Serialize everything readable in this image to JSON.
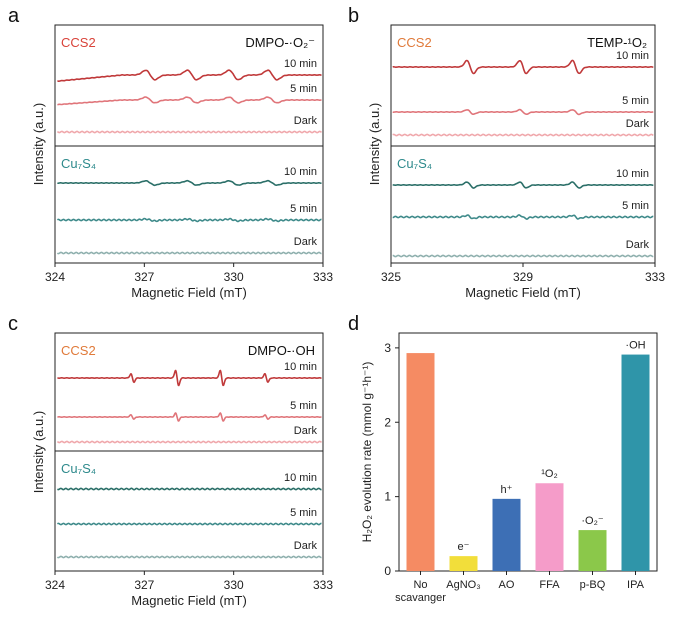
{
  "chart_data": [
    {
      "panel": "a",
      "type": "line",
      "title": "",
      "xlabel": "Magnetic Field (mT)",
      "ylabel": "Intensity (a.u.)",
      "xlim": [
        324,
        333
      ],
      "xticks": [
        324,
        327,
        330,
        333
      ],
      "probe_label": "DMPO-·O₂⁻",
      "groups": [
        {
          "name": "CCS2",
          "color": "#d9433a",
          "traces": [
            {
              "label": "10 min",
              "color": "#c0393a",
              "amplitude": 1.0,
              "baseline_rise": 0.8
            },
            {
              "label": "5 min",
              "color": "#e0757a",
              "amplitude": 0.6,
              "baseline_rise": 0.6
            },
            {
              "label": "Dark",
              "color": "#f0a8ac",
              "amplitude": 0.0,
              "baseline_rise": 0.0
            }
          ]
        },
        {
          "name": "Cu₇S₄",
          "color": "#2e8a8c",
          "traces": [
            {
              "label": "10 min",
              "color": "#2b6f68",
              "amplitude": 0.45,
              "baseline_rise": 0.0
            },
            {
              "label": "5 min",
              "color": "#3e8a8a",
              "amplitude": 0.2,
              "baseline_rise": 0.0
            },
            {
              "label": "Dark",
              "color": "#8fb0ae",
              "amplitude": 0.0,
              "baseline_rise": 0.0
            }
          ]
        }
      ],
      "peak_centers_mT": [
        327.2,
        328.6,
        330.0,
        331.3
      ]
    },
    {
      "panel": "b",
      "type": "line",
      "title": "",
      "xlabel": "Magnetic Field (mT)",
      "ylabel": "Intensity (a.u.)",
      "xlim": [
        325,
        333
      ],
      "xticks": [
        325,
        329,
        333
      ],
      "probe_label": "TEMP-¹O₂",
      "groups": [
        {
          "name": "CCS2",
          "color": "#e07a3a",
          "traces": [
            {
              "label": "10 min",
              "color": "#c0393a",
              "amplitude": 1.0,
              "baseline_rise": 0.0
            },
            {
              "label": "5 min",
              "color": "#e0757a",
              "amplitude": 0.35,
              "baseline_rise": 0.0
            },
            {
              "label": "Dark",
              "color": "#f0a8ac",
              "amplitude": 0.0,
              "baseline_rise": 0.0
            }
          ]
        },
        {
          "name": "Cu₇S₄",
          "color": "#2e8a8c",
          "traces": [
            {
              "label": "10 min",
              "color": "#2b6f68",
              "amplitude": 0.45,
              "baseline_rise": 0.0
            },
            {
              "label": "5 min",
              "color": "#3e8a8a",
              "amplitude": 0.25,
              "baseline_rise": 0.0
            },
            {
              "label": "Dark",
              "color": "#8fb0ae",
              "amplitude": 0.0,
              "baseline_rise": 0.0
            }
          ]
        }
      ],
      "peak_centers_mT": [
        327.4,
        329.0,
        330.6
      ]
    },
    {
      "panel": "c",
      "type": "line",
      "title": "",
      "xlabel": "Magnetic Field (mT)",
      "ylabel": "Intensity (a.u.)",
      "xlim": [
        324,
        333
      ],
      "xticks": [
        324,
        327,
        330,
        333
      ],
      "probe_label": "DMPO-·OH",
      "groups": [
        {
          "name": "CCS2",
          "color": "#e07a3a",
          "traces": [
            {
              "label": "10 min",
              "color": "#c0393a",
              "amplitude": 1.0,
              "baseline_rise": 0.0
            },
            {
              "label": "5 min",
              "color": "#e0757a",
              "amplitude": 0.5,
              "baseline_rise": 0.0
            },
            {
              "label": "Dark",
              "color": "#f0a8ac",
              "amplitude": 0.0,
              "baseline_rise": 0.0
            }
          ]
        },
        {
          "name": "Cu₇S₄",
          "color": "#2e8a8c",
          "traces": [
            {
              "label": "10 min",
              "color": "#2b6f68",
              "amplitude": 0.03,
              "baseline_rise": 0.0
            },
            {
              "label": "5 min",
              "color": "#3e8a8a",
              "amplitude": 0.0,
              "baseline_rise": 0.0
            },
            {
              "label": "Dark",
              "color": "#8fb0ae",
              "amplitude": 0.0,
              "baseline_rise": 0.0
            }
          ]
        }
      ],
      "peak_centers_mT": [
        326.6,
        328.1,
        329.6,
        331.1
      ]
    },
    {
      "panel": "d",
      "type": "bar",
      "title": "",
      "xlabel": "",
      "ylabel": "H₂O₂ evolution rate (mmol g⁻¹h⁻¹)",
      "ylim": [
        0,
        3.2
      ],
      "yticks": [
        0,
        1,
        2,
        3
      ],
      "categories": [
        "No scavanger",
        "AgNO₃",
        "AO",
        "FFA",
        "p-BQ",
        "IPA"
      ],
      "category_lines": [
        [
          "No",
          "scavanger"
        ],
        [
          "AgNO₃"
        ],
        [
          "AO"
        ],
        [
          "FFA"
        ],
        [
          "p-BQ"
        ],
        [
          "IPA"
        ]
      ],
      "values": [
        2.93,
        0.2,
        0.97,
        1.18,
        0.55,
        2.91
      ],
      "colors": [
        "#f58b63",
        "#f2de3a",
        "#3d6fb5",
        "#f59cc9",
        "#8bc84a",
        "#2f95a9"
      ],
      "bar_labels": [
        "",
        "e⁻",
        "h⁺",
        "¹O₂",
        "·O₂⁻",
        "·OH"
      ]
    }
  ],
  "panel_letters": [
    "a",
    "b",
    "c",
    "d"
  ]
}
